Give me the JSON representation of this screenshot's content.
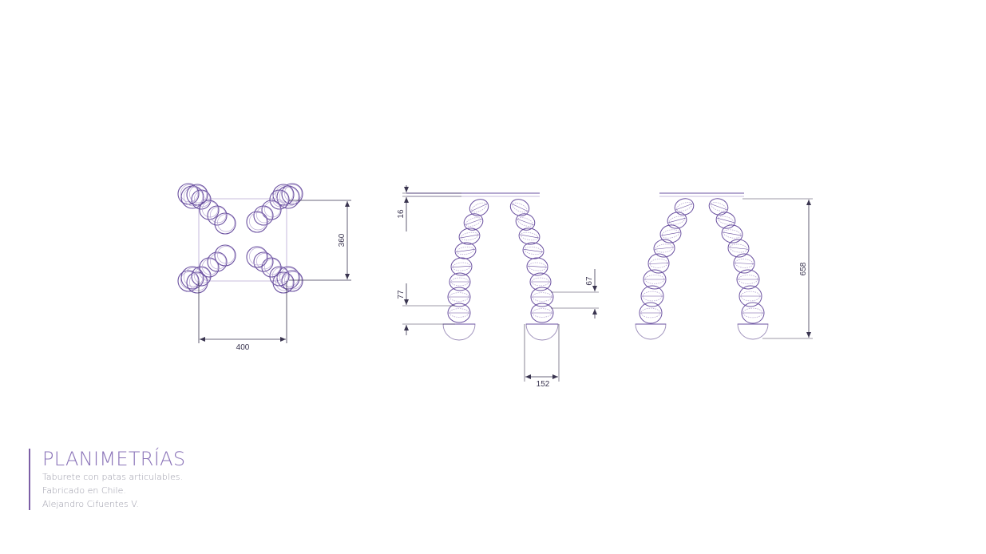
{
  "colors": {
    "accent": "#7c5fa6",
    "line": "#6a50a0",
    "line_light": "#b8a8d4",
    "dimension": "#3a3550",
    "subtitle": "#9a9aa8"
  },
  "title": "PLANIMETRÍAS",
  "description": [
    "Taburete con patas articulables.",
    "Fabricado en Chile.",
    "Alejandro Cifuentes V."
  ],
  "views": {
    "top": {
      "dim_width": "400",
      "dim_depth": "360"
    },
    "front": {
      "dim_seat": "16",
      "dim_foot": "77",
      "dim_joint": "67",
      "dim_base": "152"
    },
    "side": {
      "dim_height": "658"
    }
  }
}
